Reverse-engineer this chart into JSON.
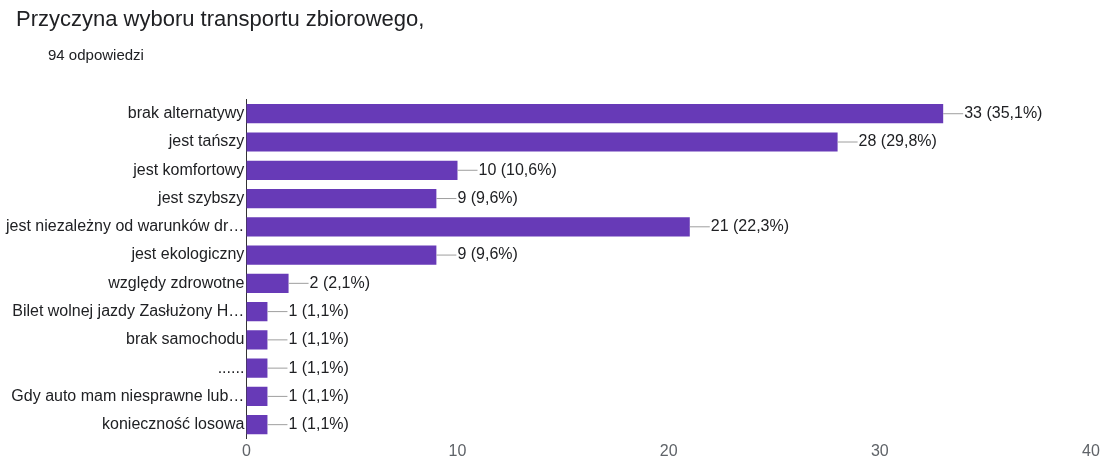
{
  "chart_data": {
    "type": "bar",
    "title": "Przyczyna wyboru transportu zbiorowego,",
    "subtitle": "94 odpowiedzi",
    "orientation": "horizontal",
    "categories": [
      "brak alternatywy",
      "jest tańszy",
      "jest komfortowy",
      "jest szybszy",
      "jest niezależny od warunków dr…",
      "jest ekologiczny",
      "względy zdrowotne",
      "Bilet wolnej jazdy Zasłużony H…",
      "brak samochodu",
      "......",
      "Gdy auto mam niesprawne lub…",
      "konieczność losowa"
    ],
    "values": [
      33,
      28,
      10,
      9,
      21,
      9,
      2,
      1,
      1,
      1,
      1,
      1
    ],
    "value_labels": [
      "33 (35,1%)",
      "28 (29,8%)",
      "10 (10,6%)",
      "9 (9,6%)",
      "21 (22,3%)",
      "9 (9,6%)",
      "2 (2,1%)",
      "1 (1,1%)",
      "1 (1,1%)",
      "1 (1,1%)",
      "1 (1,1%)",
      "1 (1,1%)"
    ],
    "color": "#673ab7",
    "xlim": [
      0,
      40
    ],
    "xticks": [
      0,
      10,
      20,
      30,
      40
    ],
    "grid": false
  }
}
